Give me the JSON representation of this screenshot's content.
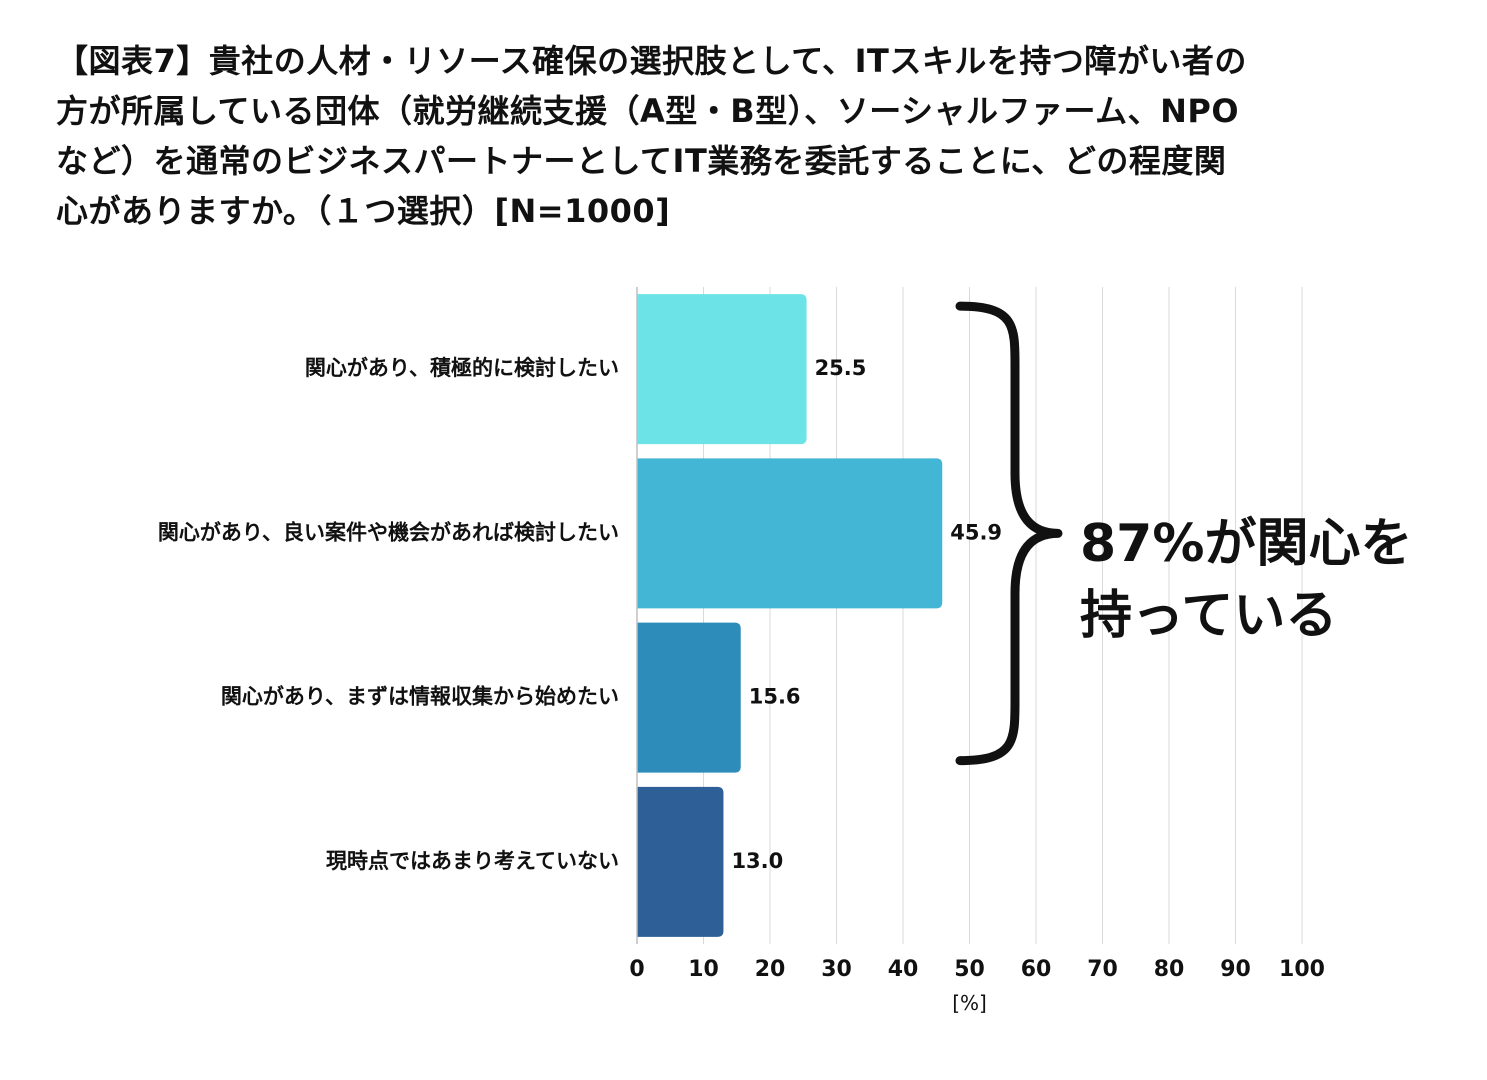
{
  "title": {
    "lines": [
      "【図表7】貴社の人材・リソース確保の選択肢として、ITスキルを持つ障がい者の",
      "方が所属している団体（就労継続支援（A型・B型）、ソーシャルファーム、NPO",
      "など）を通常のビジネスパートナーとしてIT業務を委託することに、どの程度関",
      "心がありますか。（１つ選択）[N=1000]"
    ]
  },
  "annotation": {
    "line1": "87%が関心を",
    "line2": "持っている",
    "covers_categories": [
      0,
      1,
      2
    ]
  },
  "chart_data": {
    "type": "bar",
    "orientation": "horizontal",
    "categories": [
      "関心があり、積極的に検討したい",
      "関心があり、良い案件や機会があれば検討したい",
      "関心があり、まずは情報収集から始めたい",
      "現時点ではあまり考えていない"
    ],
    "values": [
      25.5,
      45.9,
      15.6,
      13.0
    ],
    "value_labels": [
      "25.5",
      "45.9",
      "15.6",
      "13.0"
    ],
    "colors": [
      "#6ce3e6",
      "#42b6d4",
      "#2e8cba",
      "#2e5f96"
    ],
    "xlim": [
      0,
      100
    ],
    "xticks": [
      0,
      10,
      20,
      30,
      40,
      50,
      60,
      70,
      80,
      90,
      100
    ],
    "xlabel": "[%]",
    "grid": true,
    "legend": "none"
  }
}
